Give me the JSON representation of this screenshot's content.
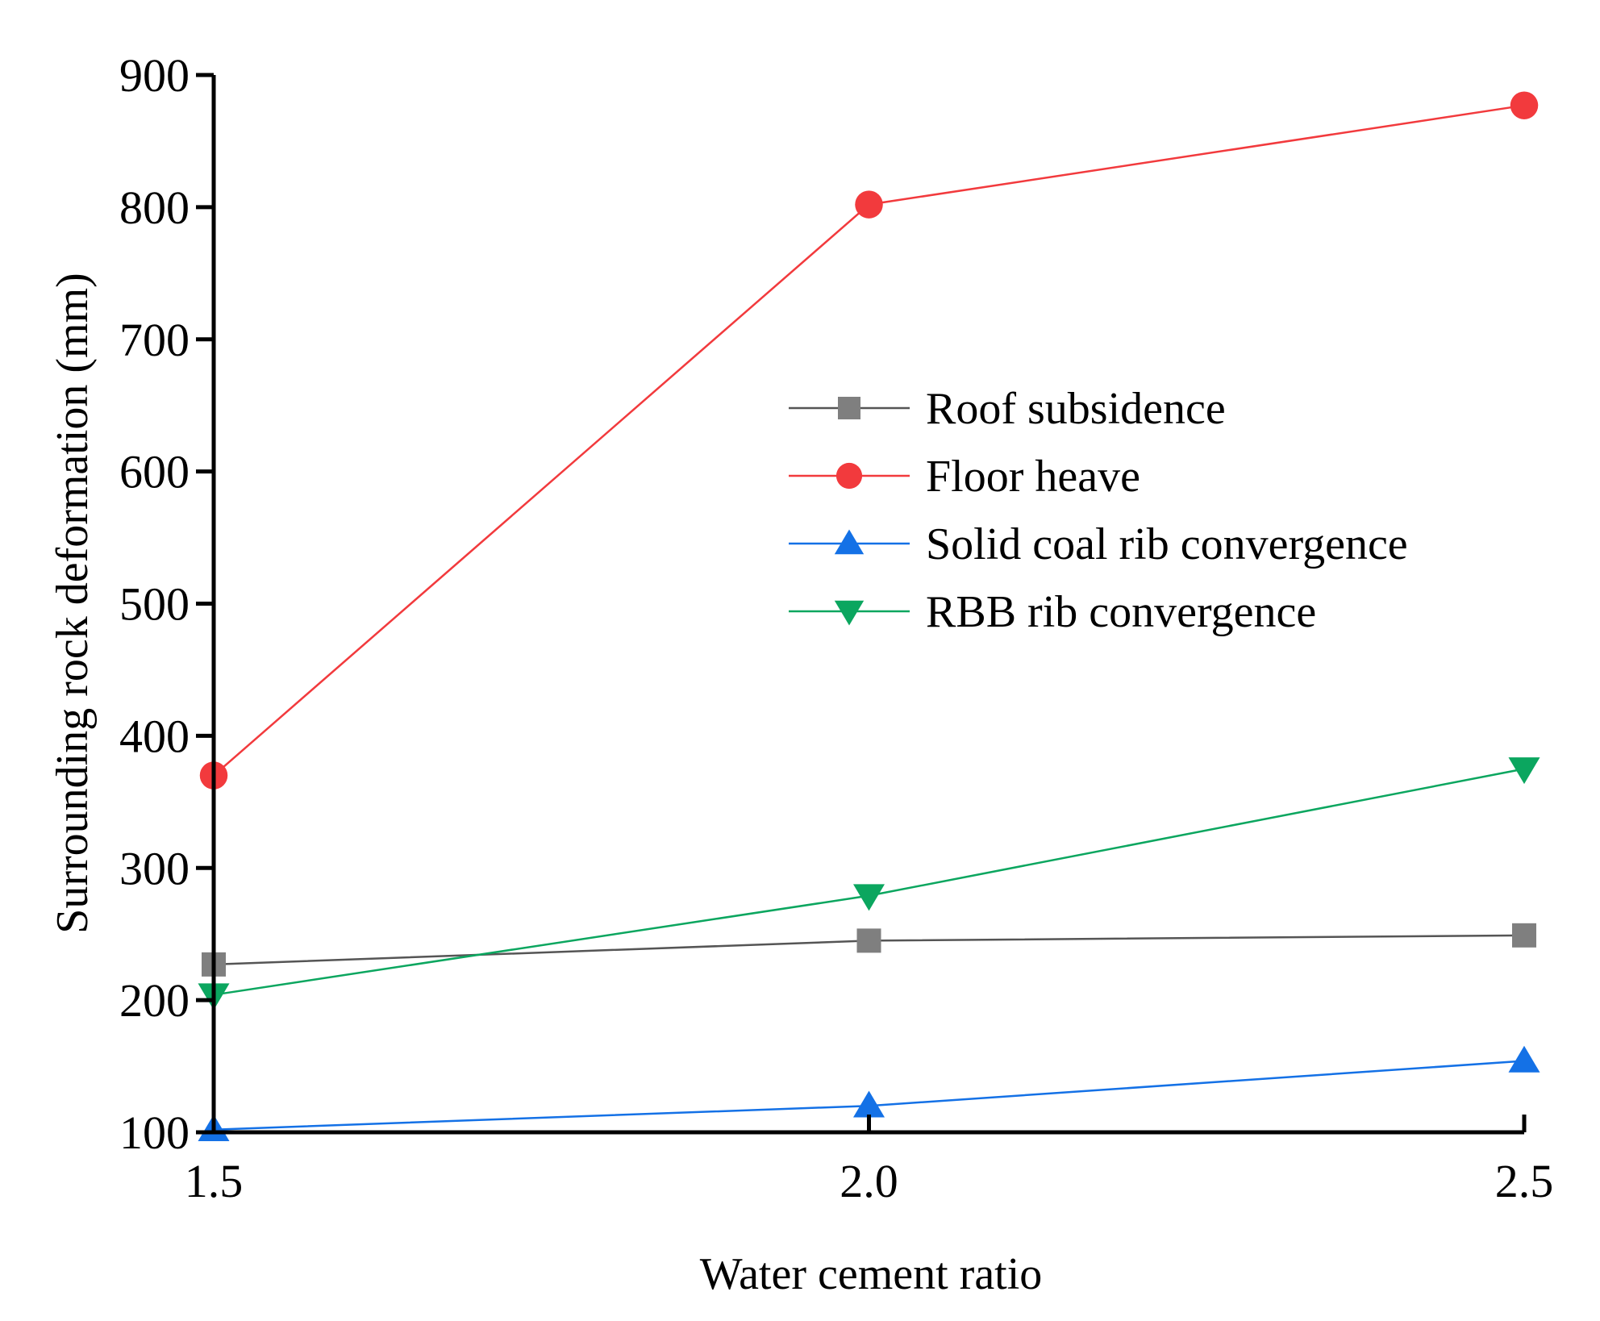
{
  "chart_data": {
    "type": "line",
    "title": "",
    "xlabel": "Water cement ratio",
    "ylabel": "Surrounding rock deformation (mm)",
    "x": [
      1.5,
      2.0,
      2.5
    ],
    "xticks": [
      "1.5",
      "2.0",
      "2.5"
    ],
    "xlim": [
      1.5,
      2.5
    ],
    "ylim": [
      100,
      900
    ],
    "yticks": [
      100,
      200,
      300,
      400,
      500,
      600,
      700,
      800,
      900
    ],
    "grid": false,
    "legend_position": "center-right",
    "series": [
      {
        "name": "Roof subsidence",
        "marker": "square",
        "color": "#7f7f7f",
        "line_color": "#555555",
        "values": [
          227,
          245,
          249
        ]
      },
      {
        "name": "Floor heave",
        "marker": "circle",
        "color": "#f23a3d",
        "line_color": "#f23a3d",
        "values": [
          370,
          802,
          877
        ]
      },
      {
        "name": "Solid coal rib convergence",
        "marker": "triangle-up",
        "color": "#1471e6",
        "line_color": "#1471e6",
        "values": [
          102,
          120,
          154
        ]
      },
      {
        "name": "RBB rib convergence",
        "marker": "triangle-down",
        "color": "#0ba65f",
        "line_color": "#0ba65f",
        "values": [
          204,
          279,
          375
        ]
      }
    ]
  }
}
